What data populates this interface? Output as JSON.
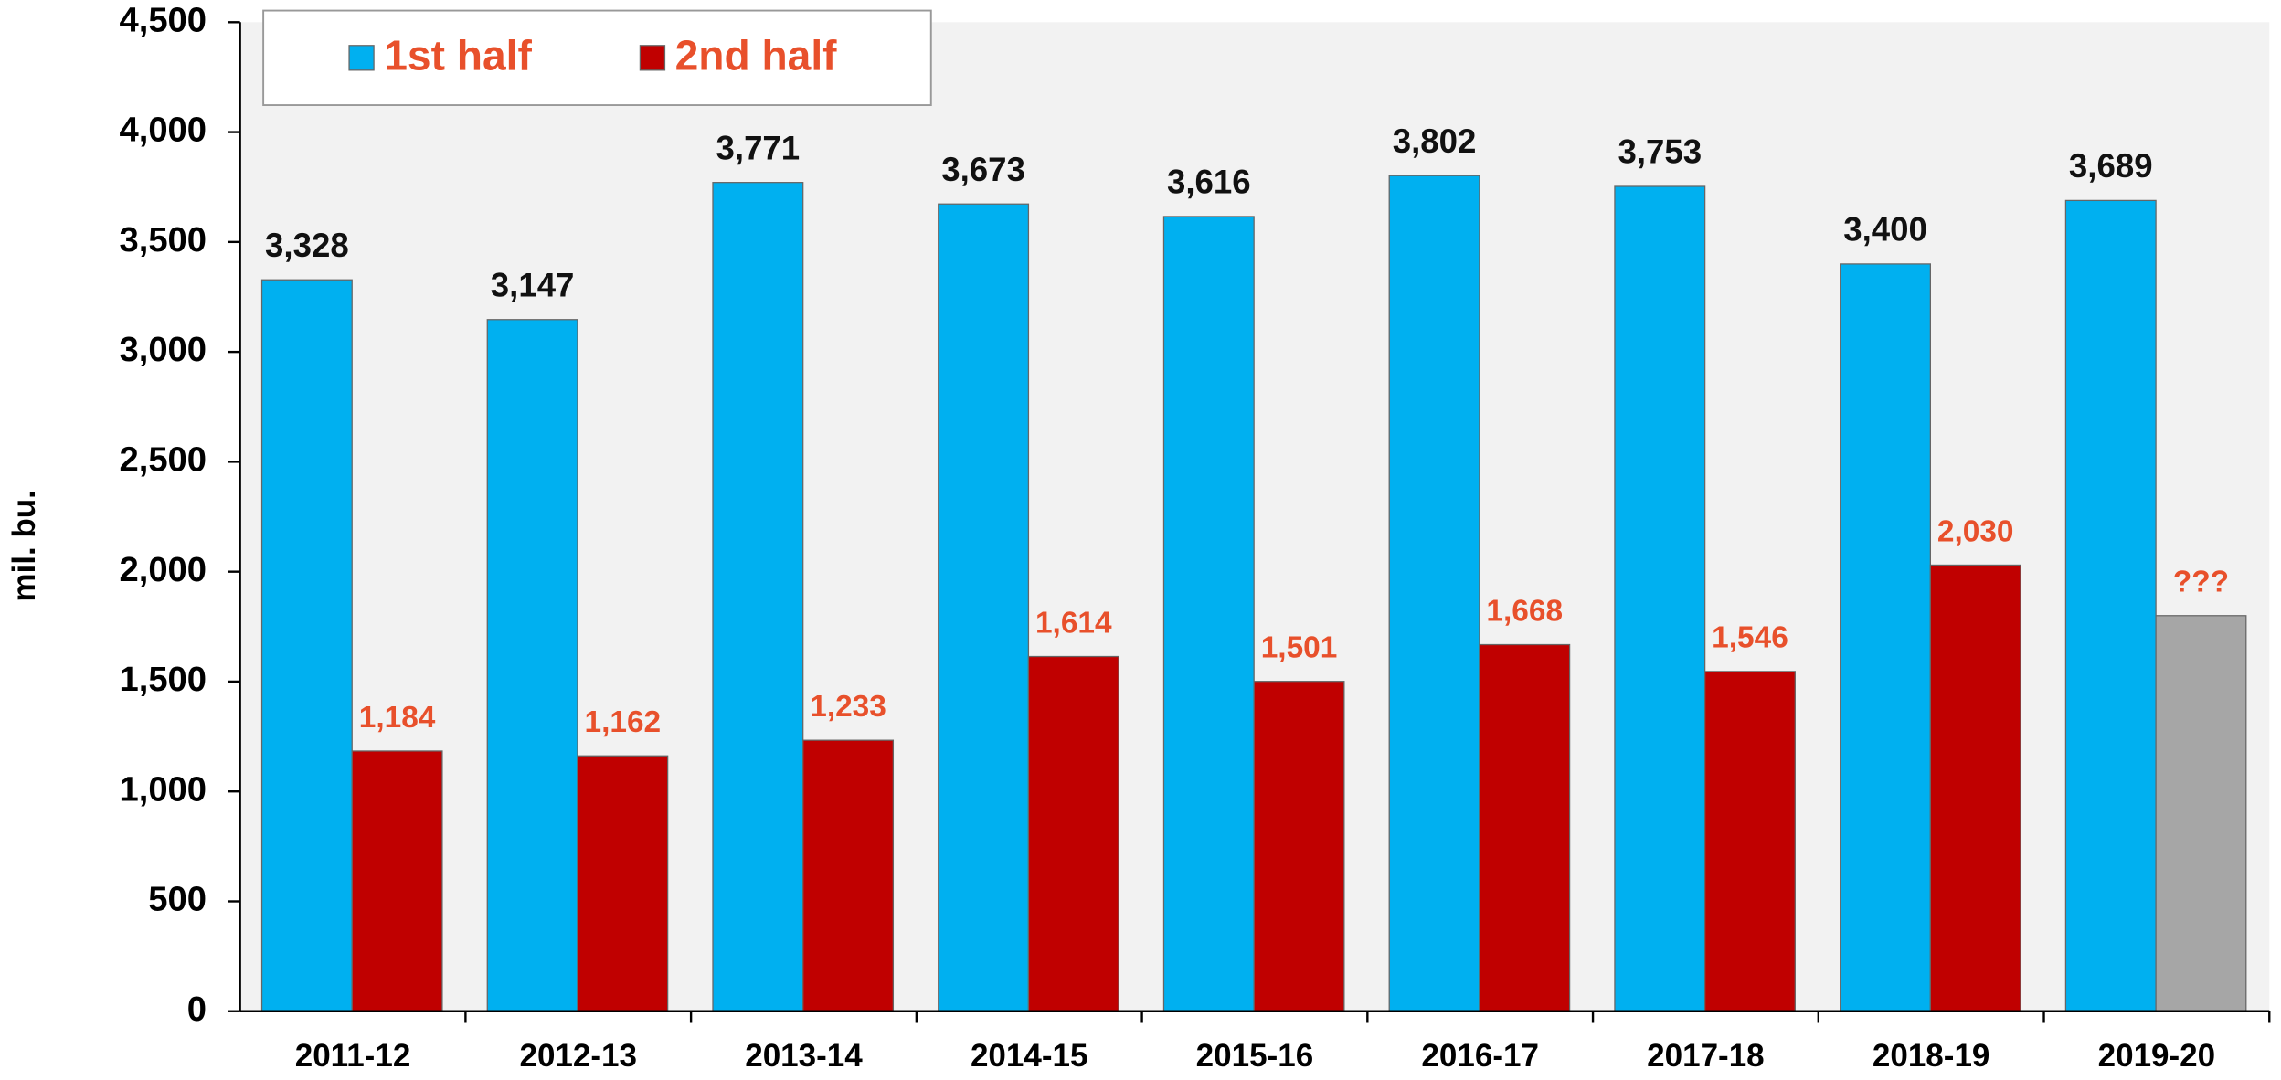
{
  "chart_data": {
    "type": "bar",
    "ylabel": "mil. bu.",
    "categories": [
      "2011-12",
      "2012-13",
      "2013-14",
      "2014-15",
      "2015-16",
      "2016-17",
      "2017-18",
      "2018-19",
      "2019-20"
    ],
    "series": [
      {
        "name": "1st half",
        "color": "#00b0f0",
        "values": [
          3328,
          3147,
          3771,
          3673,
          3616,
          3802,
          3753,
          3400,
          3689
        ],
        "value_labels": [
          "3,328",
          "3,147",
          "3,771",
          "3,673",
          "3,616",
          "3,802",
          "3,753",
          "3,400",
          "3,689"
        ]
      },
      {
        "name": "2nd half",
        "color": "#c00000",
        "colors": [
          "#c00000",
          "#c00000",
          "#c00000",
          "#c00000",
          "#c00000",
          "#c00000",
          "#c00000",
          "#c00000",
          "#a6a6a6"
        ],
        "values": [
          1184,
          1162,
          1233,
          1614,
          1501,
          1668,
          1546,
          2030,
          1800
        ],
        "value_labels": [
          "1,184",
          "1,162",
          "1,233",
          "1,614",
          "1,501",
          "1,668",
          "1,546",
          "2,030",
          "???"
        ]
      }
    ],
    "ylim": [
      0,
      4500
    ],
    "yticks": [
      0,
      500,
      {
        "value": 1000,
        "label": "1,000"
      },
      {
        "value": 1500,
        "label": "1,500"
      },
      {
        "value": 2000,
        "label": "2,000"
      },
      {
        "value": 2500,
        "label": "2,500"
      },
      {
        "value": 3000,
        "label": "3,000"
      },
      {
        "value": 3500,
        "label": "3,500"
      },
      {
        "value": 4000,
        "label": "4,000"
      },
      {
        "value": 4500,
        "label": "4,500"
      }
    ],
    "legend": "top-left"
  }
}
